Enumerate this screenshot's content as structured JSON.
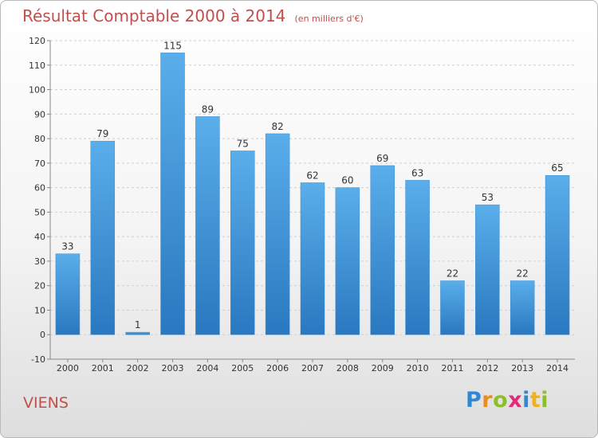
{
  "title": "Résultat Comptable 2000 à 2014",
  "subtitle": "(en milliers d'€)",
  "place": "VIENS",
  "logo": {
    "letters": [
      {
        "ch": "P",
        "color": "#2e88d6"
      },
      {
        "ch": "r",
        "color": "#e98d1f"
      },
      {
        "ch": "o",
        "color": "#8cbf2a"
      },
      {
        "ch": "x",
        "color": "#e02a7a"
      },
      {
        "ch": "i",
        "color": "#2e88d6"
      },
      {
        "ch": "t",
        "color": "#f0b21b"
      },
      {
        "ch": "i",
        "color": "#8cbf2a"
      }
    ]
  },
  "chart_data": {
    "type": "bar",
    "title": "Résultat Comptable 2000 à 2014",
    "subtitle": "(en milliers d'€)",
    "xlabel": "",
    "ylabel": "",
    "categories": [
      "2000",
      "2001",
      "2002",
      "2003",
      "2004",
      "2005",
      "2006",
      "2007",
      "2008",
      "2009",
      "2010",
      "2011",
      "2012",
      "2013",
      "2014"
    ],
    "values": [
      33,
      79,
      1,
      115,
      89,
      75,
      82,
      62,
      60,
      69,
      63,
      22,
      53,
      22,
      65
    ],
    "ylim": [
      -10,
      120
    ],
    "yticks": [
      -10,
      0,
      10,
      20,
      30,
      40,
      50,
      60,
      70,
      80,
      90,
      100,
      110,
      120
    ],
    "grid": true,
    "bar_color": "#4a9fe0",
    "legend": "none"
  }
}
